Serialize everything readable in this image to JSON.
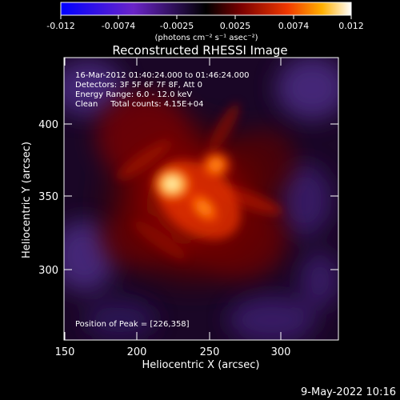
{
  "colorbar": {
    "tick_labels": [
      "-0.012",
      "-0.0074",
      "-0.0025",
      "0.0025",
      "0.0074",
      "0.012"
    ],
    "unit_label": "(photons cm⁻² s⁻¹ asec⁻²)"
  },
  "title": "Reconstructed RHESSI Image",
  "annotations": {
    "time_range": "16-Mar-2012 01:40:24.000 to 01:46:24.000",
    "detectors": "Detectors: 3F 5F 6F 7F 8F, Att 0",
    "energy_range": "Energy Range: 6.0 - 12.0 keV",
    "clean_counts": "Clean     Total counts: 4.15E+04",
    "peak_position": "Position of Peak = [226,358]"
  },
  "axes": {
    "xlabel": "Heliocentric X (arcsec)",
    "ylabel": "Heliocentric Y (arcsec)",
    "x_ticks": [
      "150",
      "200",
      "250",
      "300"
    ],
    "y_ticks": [
      "300",
      "350",
      "400"
    ]
  },
  "footer": {
    "date": "9-May-2022 10:16"
  },
  "image_data": {
    "x_range": [
      150,
      340
    ],
    "y_range": [
      250,
      435
    ],
    "sources": [
      {
        "x": 226,
        "y": 358,
        "intensity": 1.0
      },
      {
        "x": 242,
        "y": 340,
        "intensity": 0.8
      },
      {
        "x": 260,
        "y": 371,
        "intensity": 0.5
      }
    ]
  }
}
